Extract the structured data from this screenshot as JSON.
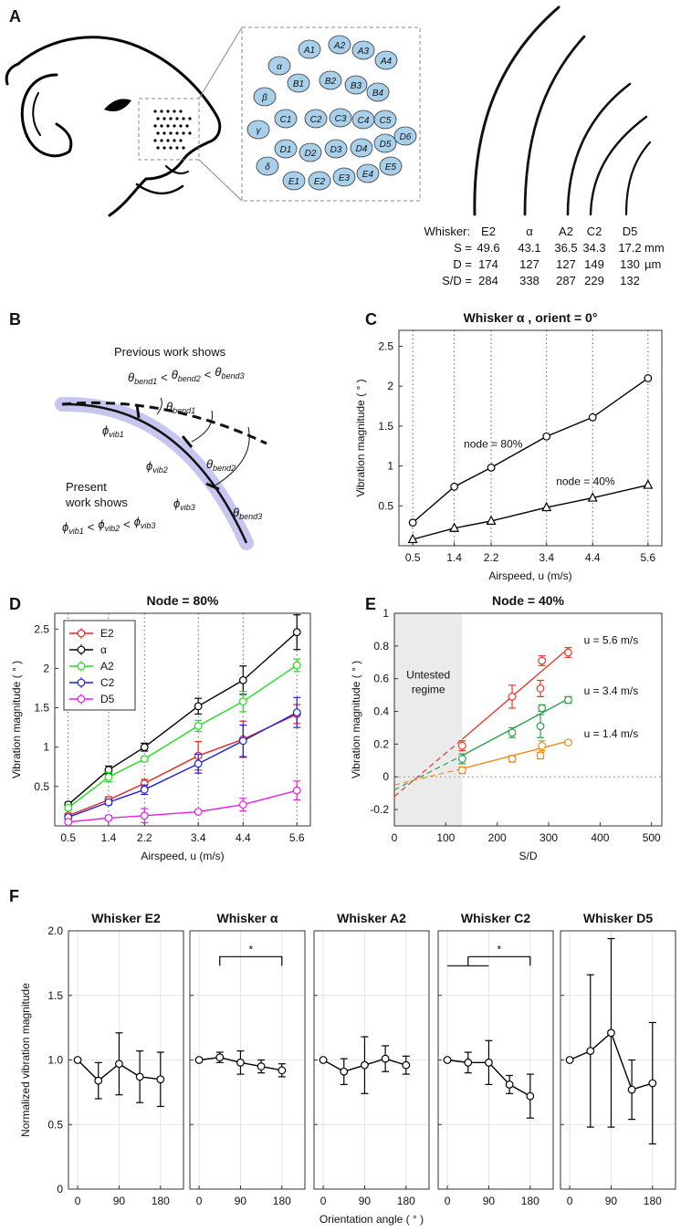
{
  "panel_labels": [
    "A",
    "B",
    "C",
    "D",
    "E",
    "F"
  ],
  "panel_a": {
    "pad_labels": [
      "A1",
      "A2",
      "A3",
      "A4",
      "α",
      "B1",
      "B2",
      "B3",
      "B4",
      "β",
      "C1",
      "C2",
      "C3",
      "C4",
      "C5",
      "γ",
      "D1",
      "D2",
      "D3",
      "D4",
      "D5",
      "D6",
      "δ",
      "E1",
      "E2",
      "E3",
      "E4",
      "E5"
    ],
    "table": {
      "header": [
        "Whisker:",
        "E2",
        "α",
        "A2",
        "C2",
        "D5"
      ],
      "rows": [
        [
          "S =",
          49.6,
          43.1,
          36.5,
          34.3,
          17.2,
          "mm"
        ],
        [
          "D =",
          174,
          127,
          127,
          149,
          130,
          "µm"
        ],
        [
          "S/D =",
          284,
          338,
          287,
          229,
          132
        ]
      ]
    }
  },
  "panel_b": {
    "previous": "Previous work shows",
    "present": [
      "Present",
      "work shows"
    ],
    "theta": "θ",
    "phi": "ϕ",
    "less": "<",
    "theta_subs": [
      "bend1",
      "bend2",
      "bend3"
    ],
    "phi_subs": [
      "vib1",
      "vib2",
      "vib3"
    ]
  },
  "chart_data": [
    {
      "type": "line",
      "title": "Whisker α , orient = 0°",
      "xlabel": "Airspeed, u (m/s)",
      "ylabel": "Vibration magnitude ( ° )",
      "x": [
        0.5,
        1.4,
        2.2,
        3.4,
        4.4,
        5.6
      ],
      "xticks": [
        0.5,
        1.4,
        2.2,
        3.4,
        4.4,
        5.6
      ],
      "xlim": [
        0.2,
        5.9
      ],
      "ylim": [
        0,
        2.7
      ],
      "yticks": [
        0.5,
        1,
        1.5,
        2,
        2.5
      ],
      "grid": "x",
      "series": [
        {
          "name": "node = 80%",
          "color": "#000000",
          "marker": "o",
          "values": [
            0.29,
            0.74,
            0.98,
            1.37,
            1.61,
            2.1
          ]
        },
        {
          "name": "node = 40%",
          "color": "#000000",
          "marker": "^",
          "values": [
            0.08,
            0.22,
            0.31,
            0.48,
            0.6,
            0.76
          ]
        }
      ]
    },
    {
      "type": "line",
      "title": "Node = 80%",
      "xlabel": "Airspeed, u (m/s)",
      "ylabel": "Vibration magnitude ( ° )",
      "x": [
        0.5,
        1.4,
        2.2,
        3.4,
        4.4,
        5.6
      ],
      "xticks": [
        0.5,
        1.4,
        2.2,
        3.4,
        4.4,
        5.6
      ],
      "xlim": [
        0.2,
        5.9
      ],
      "ylim": [
        0,
        2.7
      ],
      "yticks": [
        0.5,
        1,
        1.5,
        2,
        2.5
      ],
      "grid": "x",
      "legend": "upper left",
      "series": [
        {
          "name": "E2",
          "color": "#e8251f",
          "marker": "o",
          "values": [
            0.13,
            0.33,
            0.54,
            0.89,
            1.1,
            1.42
          ],
          "errors": [
            0.03,
            0.04,
            0.05,
            0.18,
            0.23,
            0.12
          ]
        },
        {
          "name": "α",
          "color": "#000000",
          "marker": "o",
          "values": [
            0.27,
            0.71,
            1.0,
            1.52,
            1.85,
            2.46
          ],
          "errors": [
            0.03,
            0.05,
            0.05,
            0.1,
            0.18,
            0.22
          ]
        },
        {
          "name": "A2",
          "color": "#22dd22",
          "marker": "o",
          "values": [
            0.23,
            0.62,
            0.85,
            1.27,
            1.58,
            2.04
          ],
          "errors": [
            0.03,
            0.06,
            0.03,
            0.07,
            0.13,
            0.08
          ]
        },
        {
          "name": "C2",
          "color": "#1f1fd8",
          "marker": "o",
          "values": [
            0.11,
            0.3,
            0.46,
            0.79,
            1.08,
            1.44
          ],
          "errors": [
            0.02,
            0.03,
            0.06,
            0.12,
            0.2,
            0.19
          ]
        },
        {
          "name": "D5",
          "color": "#e31ee3",
          "marker": "o",
          "values": [
            0.05,
            0.1,
            0.13,
            0.18,
            0.27,
            0.45
          ],
          "errors": [
            0.02,
            0.03,
            0.09,
            0.01,
            0.08,
            0.12
          ]
        }
      ]
    },
    {
      "type": "scatter",
      "title": "Node = 40%",
      "xlabel": "S/D",
      "ylabel": "Vibration magnitude ( ° )",
      "x": [
        132,
        229,
        284,
        287,
        338
      ],
      "xlim": [
        0,
        520
      ],
      "xticks": [
        0,
        100,
        200,
        300,
        400,
        500
      ],
      "ylim": [
        -0.3,
        1.0
      ],
      "yticks": [
        -0.2,
        0,
        0.2,
        0.4,
        0.6,
        0.8,
        1
      ],
      "shade_x": [
        0,
        132
      ],
      "shade_label": [
        "Untested",
        "regime"
      ],
      "fit_x": [
        0,
        132,
        340
      ],
      "series": [
        {
          "name": "u = 5.6 m/s",
          "color": "#e8392a",
          "values": [
            0.19,
            0.49,
            0.54,
            0.71,
            0.76
          ],
          "errors": [
            0.03,
            0.07,
            0.05,
            0.03,
            0.03
          ],
          "fit": [
            -0.12,
            0.23,
            0.79
          ]
        },
        {
          "name": "u = 3.4 m/s",
          "color": "#2ba24c",
          "values": [
            0.11,
            0.27,
            0.31,
            0.42,
            0.47
          ],
          "errors": [
            0.03,
            0.03,
            0.07,
            0.02,
            0.02
          ],
          "fit": [
            -0.08,
            0.13,
            0.48
          ]
        },
        {
          "name": "u = 1.4 m/s",
          "color": "#f08a1c",
          "values": [
            0.04,
            0.11,
            0.13,
            0.19,
            0.21
          ],
          "errors": [
            0.02,
            0.02,
            0.02,
            0.03,
            0.01
          ],
          "fit": [
            -0.05,
            0.05,
            0.22
          ]
        }
      ]
    },
    {
      "type": "line",
      "title": "Whisker E2",
      "ylabel": "Normalized vibration magnitude",
      "x": [
        0,
        45,
        90,
        135,
        180
      ],
      "xticks": [
        0,
        90,
        180
      ],
      "xlim": [
        -20,
        230
      ],
      "ylim": [
        0,
        2
      ],
      "yticks": [
        0,
        0.5,
        {
          "value": 1,
          "label": "1.0"
        },
        1.5,
        {
          "value": 2,
          "label": "2.0"
        }
      ],
      "grid": "both",
      "series": [
        {
          "color": "#000000",
          "marker": "o",
          "values": [
            1.0,
            0.84,
            0.97,
            0.87,
            0.85
          ],
          "errors": [
            0,
            0.14,
            0.24,
            0.2,
            0.21
          ]
        }
      ]
    },
    {
      "type": "line",
      "title": "Whisker α",
      "x": [
        0,
        45,
        90,
        135,
        180
      ],
      "xticks": [
        0,
        90,
        180
      ],
      "xlim": [
        -20,
        230
      ],
      "ylim": [
        0,
        2
      ],
      "yticks": [
        0,
        0.5,
        {
          "value": 1,
          "label": "1.0"
        },
        1.5,
        {
          "value": 2,
          "label": "2.0"
        }
      ],
      "grid": "both",
      "significance": {
        "label": "*",
        "x": [
          45,
          180
        ],
        "y": 1.8
      },
      "series": [
        {
          "color": "#000000",
          "marker": "o",
          "values": [
            1.0,
            1.02,
            0.98,
            0.95,
            0.92
          ],
          "errors": [
            0,
            0.04,
            0.09,
            0.05,
            0.05
          ]
        }
      ]
    },
    {
      "type": "line",
      "title": "Whisker A2",
      "xlabel": "Orientation angle ( ° )",
      "x": [
        0,
        45,
        90,
        135,
        180
      ],
      "xticks": [
        0,
        90,
        180
      ],
      "xlim": [
        -20,
        230
      ],
      "ylim": [
        0,
        2
      ],
      "yticks": [
        0,
        0.5,
        {
          "value": 1,
          "label": "1.0"
        },
        1.5,
        {
          "value": 2,
          "label": "2.0"
        }
      ],
      "grid": "both",
      "series": [
        {
          "color": "#000000",
          "marker": "o",
          "values": [
            1.0,
            0.91,
            0.96,
            1.01,
            0.96
          ],
          "errors": [
            0,
            0.1,
            0.22,
            0.1,
            0.07
          ]
        }
      ]
    },
    {
      "type": "line",
      "title": "Whisker C2",
      "x": [
        0,
        45,
        90,
        135,
        180
      ],
      "xticks": [
        0,
        90,
        180
      ],
      "xlim": [
        -20,
        230
      ],
      "ylim": [
        0,
        2
      ],
      "yticks": [
        0,
        0.5,
        {
          "value": 1,
          "label": "1.0"
        },
        1.5,
        {
          "value": 2,
          "label": "2.0"
        }
      ],
      "grid": "both",
      "significance": {
        "label": "*",
        "x": [
          45,
          180
        ],
        "y": 1.8,
        "group": [
          0,
          90
        ]
      },
      "series": [
        {
          "color": "#000000",
          "marker": "o",
          "values": [
            1.0,
            0.98,
            0.98,
            0.81,
            0.72
          ],
          "errors": [
            0,
            0.08,
            0.17,
            0.07,
            0.17
          ]
        }
      ]
    },
    {
      "type": "line",
      "title": "Whisker D5",
      "x": [
        0,
        45,
        90,
        135,
        180
      ],
      "xticks": [
        0,
        90,
        180
      ],
      "xlim": [
        -20,
        230
      ],
      "ylim": [
        0,
        2
      ],
      "yticks": [
        0,
        0.5,
        {
          "value": 1,
          "label": "1.0"
        },
        1.5,
        {
          "value": 2,
          "label": "2.0"
        }
      ],
      "grid": "both",
      "series": [
        {
          "color": "#000000",
          "marker": "o",
          "values": [
            1.0,
            1.07,
            1.21,
            0.77,
            0.82
          ],
          "errors": [
            0,
            0.59,
            0.73,
            0.23,
            0.47
          ]
        }
      ]
    }
  ]
}
